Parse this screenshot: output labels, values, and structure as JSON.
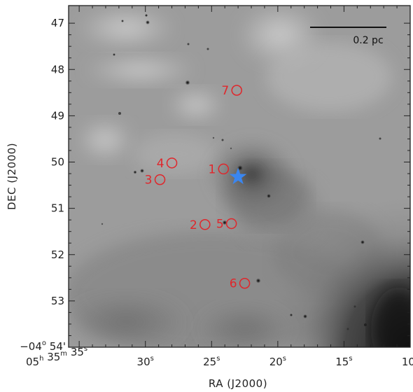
{
  "x_axis": {
    "title": "RA (J2000)",
    "ticks": [
      {
        "main": "05",
        "sup": "h",
        "main2": " 35",
        "sup2": "m",
        "main3": " 35",
        "sup3": "s",
        "tail": ""
      },
      {
        "main": "30",
        "sup": "s"
      },
      {
        "main": "25",
        "sup": "s"
      },
      {
        "main": "20",
        "sup": "s"
      },
      {
        "main": "15",
        "sup": "s"
      },
      {
        "main": "10",
        "sup": "s"
      }
    ]
  },
  "y_axis": {
    "title": "DEC (J2000)",
    "ticks": [
      "47",
      "48",
      "49",
      "50",
      "51",
      "52",
      "53"
    ],
    "origin_tick": {
      "prefix": "−04",
      "sup": "o",
      "rest": " 54'"
    }
  },
  "scale_bar": {
    "label": "0.2 pc"
  },
  "sources": [
    {
      "label": "1",
      "ra_s": 24.1,
      "dec_m": 50.15
    },
    {
      "label": "2",
      "ra_s": 25.5,
      "dec_m": 51.35
    },
    {
      "label": "3",
      "ra_s": 28.9,
      "dec_m": 50.38
    },
    {
      "label": "4",
      "ra_s": 28.0,
      "dec_m": 50.02
    },
    {
      "label": "5",
      "ra_s": 23.5,
      "dec_m": 51.33
    },
    {
      "label": "6",
      "ra_s": 22.5,
      "dec_m": 52.62
    },
    {
      "label": "7",
      "ra_s": 23.1,
      "dec_m": 48.45
    }
  ],
  "central_star": {
    "ra_s": 23.0,
    "dec_m": 50.32,
    "color": "#3a86f0"
  },
  "marker_color": "#e0262b"
}
